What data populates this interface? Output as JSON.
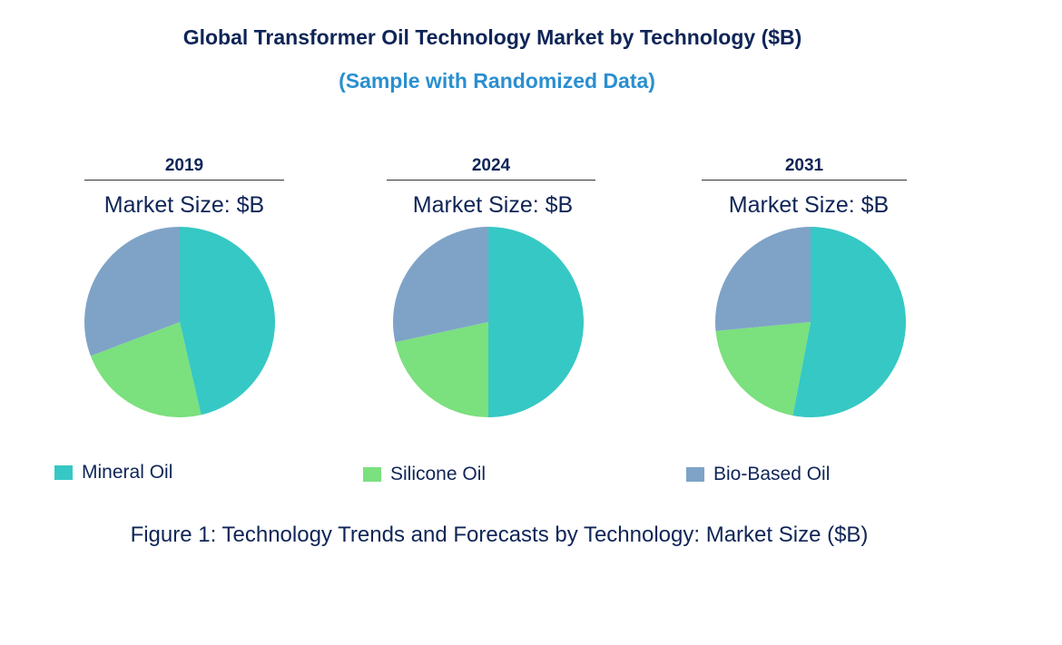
{
  "chart_data": {
    "type": "pie",
    "title": "Global Transformer Oil Technology Market by Technology ($B)",
    "subtitle": "(Sample with Randomized Data)",
    "caption": "Figure 1: Technology Trends and Forecasts by Technology: Market Size ($B)",
    "legend_position": "bottom",
    "categories": [
      "Mineral Oil",
      "Silicone Oil",
      "Bio-Based Oil"
    ],
    "colors": [
      "#36C8C4",
      "#7BE07E",
      "#7FA3C7"
    ],
    "pies": [
      {
        "year": "2019",
        "label": "Market Size: $B",
        "values": [
          46.4,
          22.8,
          30.8
        ]
      },
      {
        "year": "2024",
        "label": "Market Size: $B",
        "values": [
          50.0,
          21.6,
          28.4
        ]
      },
      {
        "year": "2031",
        "label": "Market Size: $B",
        "values": [
          53.0,
          20.5,
          26.5
        ]
      }
    ]
  }
}
